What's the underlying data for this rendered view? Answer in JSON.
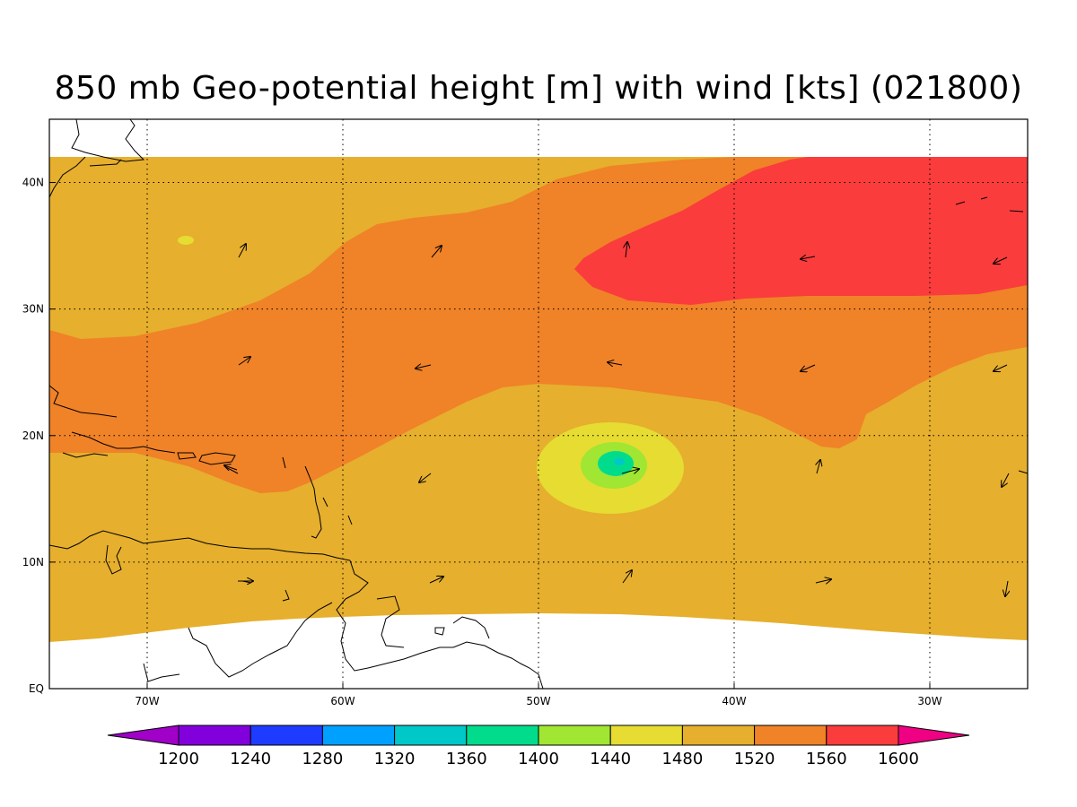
{
  "title": "850 mb Geo-potential height [m] with wind [kts] (021800)",
  "map": {
    "lon_range": [
      -75,
      -25
    ],
    "lat_range": [
      0,
      45
    ],
    "lon_ticks": [
      {
        "value": -70,
        "label": "70W"
      },
      {
        "value": -60,
        "label": "60W"
      },
      {
        "value": -50,
        "label": "50W"
      },
      {
        "value": -40,
        "label": "40W"
      },
      {
        "value": -30,
        "label": "30W"
      }
    ],
    "lat_ticks": [
      {
        "value": 0,
        "label": "EQ"
      },
      {
        "value": 10,
        "label": "10N"
      },
      {
        "value": 20,
        "label": "20N"
      },
      {
        "value": 30,
        "label": "30N"
      },
      {
        "value": 40,
        "label": "40N"
      }
    ],
    "gridlines": true,
    "colors": {
      "h1440": "#a0e632",
      "h1480": "#e6dc32",
      "h1520": "#e6af2d",
      "h1560": "#f08228",
      "h1600": "#fa3c3c",
      "h1360_1400": "#00dc8c",
      "h1320_1360": "#00c8c8",
      "nodata": "#ffffff"
    }
  },
  "colorbar": {
    "levels": [
      "1200",
      "1240",
      "1280",
      "1320",
      "1360",
      "1400",
      "1440",
      "1480",
      "1520",
      "1560",
      "1600"
    ],
    "colors": [
      "#a000c8",
      "#8200dc",
      "#1e3cff",
      "#00a0ff",
      "#00c8c8",
      "#00dc8c",
      "#a0e632",
      "#e6dc32",
      "#e6af2d",
      "#f08228",
      "#fa3c3c",
      "#f00082"
    ]
  }
}
